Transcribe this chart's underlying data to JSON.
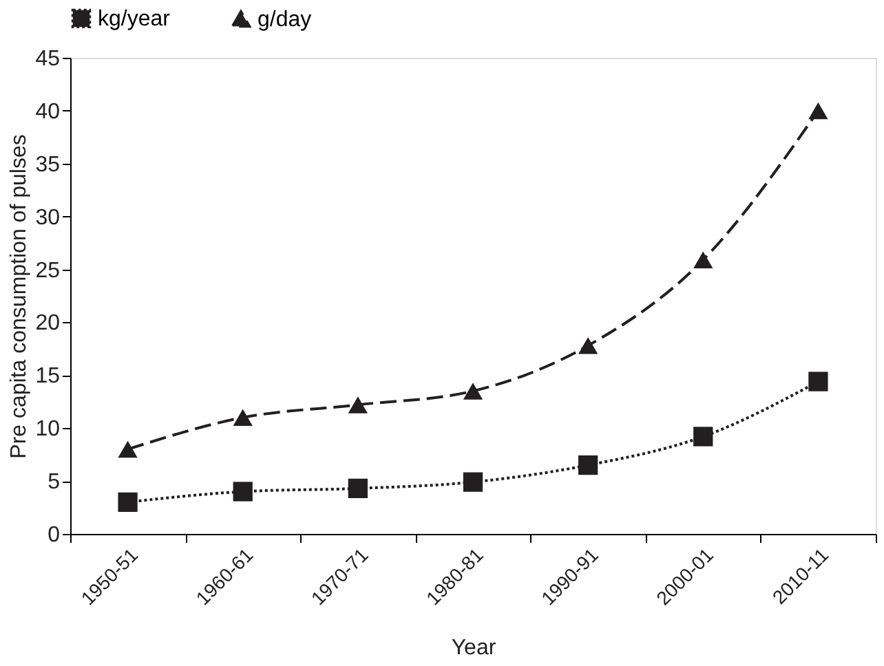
{
  "chart_data": {
    "type": "line",
    "xlabel": "Year",
    "ylabel": "Pre capita consumption of pulses",
    "categories": [
      "1950-51",
      "1960-61",
      "1970-71",
      "1980-81",
      "1990-91",
      "2000-01",
      "2010-11"
    ],
    "series": [
      {
        "name": "kg/year",
        "color": "#231f20",
        "marker": "square",
        "line_style": "dotted",
        "values": [
          3,
          4,
          4.3,
          4.9,
          6.5,
          9.2,
          14.4
        ]
      },
      {
        "name": "g/day",
        "color": "#231f20",
        "marker": "triangle",
        "line_style": "dashed",
        "values": [
          8,
          11,
          12.2,
          13.5,
          17.8,
          25.9,
          40
        ]
      }
    ],
    "ylim": [
      0,
      45
    ],
    "yticks": [
      0,
      5,
      10,
      15,
      20,
      25,
      30,
      35,
      40,
      45
    ],
    "grid": false,
    "legend": "top"
  }
}
